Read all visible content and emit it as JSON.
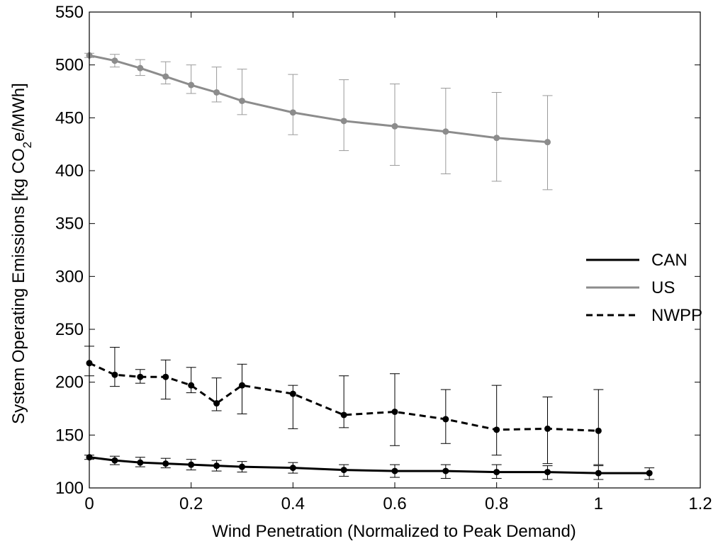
{
  "chart_data": {
    "type": "line",
    "title": "",
    "xlabel": "Wind Penetration (Normalized to Peak Demand)",
    "ylabel": "System Operating Emissions [kg CO2e/MWh]",
    "ylabel_parts": {
      "before": "System Operating Emissions [kg CO",
      "sub": "2",
      "after": "e/MWh]"
    },
    "xlim": [
      0,
      1.2
    ],
    "ylim": [
      100,
      550
    ],
    "xticks": [
      0,
      0.2,
      0.4,
      0.6,
      0.8,
      1,
      1.2
    ],
    "yticks": [
      100,
      150,
      200,
      250,
      300,
      350,
      400,
      450,
      500,
      550
    ],
    "grid": false,
    "legend_position": "right-middle",
    "series": [
      {
        "name": "CAN",
        "color": "#000000",
        "dash": "solid",
        "x": [
          0,
          0.05,
          0.1,
          0.15,
          0.2,
          0.25,
          0.3,
          0.4,
          0.5,
          0.6,
          0.7,
          0.8,
          0.9,
          1.0,
          1.1
        ],
        "y": [
          129,
          126,
          124,
          123,
          122,
          121,
          120,
          119,
          117,
          116,
          116,
          115,
          115,
          114,
          114
        ],
        "err_low": [
          127,
          122,
          120,
          119,
          117,
          116,
          115,
          114,
          111,
          110,
          109,
          109,
          108,
          108,
          108
        ],
        "err_high": [
          131,
          130,
          129,
          128,
          127,
          126,
          125,
          124,
          122,
          122,
          122,
          122,
          121,
          121,
          119
        ]
      },
      {
        "name": "US",
        "color": "#8c8c8c",
        "dash": "solid",
        "x": [
          0,
          0.05,
          0.1,
          0.15,
          0.2,
          0.25,
          0.3,
          0.4,
          0.5,
          0.6,
          0.7,
          0.8,
          0.9
        ],
        "y": [
          509,
          504,
          497,
          489,
          481,
          474,
          466,
          455,
          447,
          442,
          437,
          431,
          427
        ],
        "err_low": [
          507,
          498,
          490,
          482,
          473,
          465,
          453,
          434,
          419,
          405,
          397,
          390,
          382
        ],
        "err_high": [
          511,
          510,
          505,
          503,
          500,
          498,
          496,
          491,
          486,
          482,
          478,
          474,
          471
        ]
      },
      {
        "name": "NWPP",
        "color": "#000000",
        "dash": "dashed",
        "x": [
          0,
          0.05,
          0.1,
          0.15,
          0.2,
          0.25,
          0.3,
          0.4,
          0.5,
          0.6,
          0.7,
          0.8,
          0.9,
          1.0
        ],
        "y": [
          218,
          207,
          205,
          205,
          197,
          180,
          197,
          189,
          169,
          172,
          165,
          155,
          156,
          154
        ],
        "err_low": [
          206,
          196,
          199,
          184,
          190,
          173,
          170,
          156,
          157,
          140,
          142,
          131,
          123,
          122
        ],
        "err_high": [
          234,
          233,
          212,
          221,
          214,
          204,
          217,
          197,
          206,
          208,
          193,
          197,
          186,
          193
        ]
      }
    ]
  }
}
